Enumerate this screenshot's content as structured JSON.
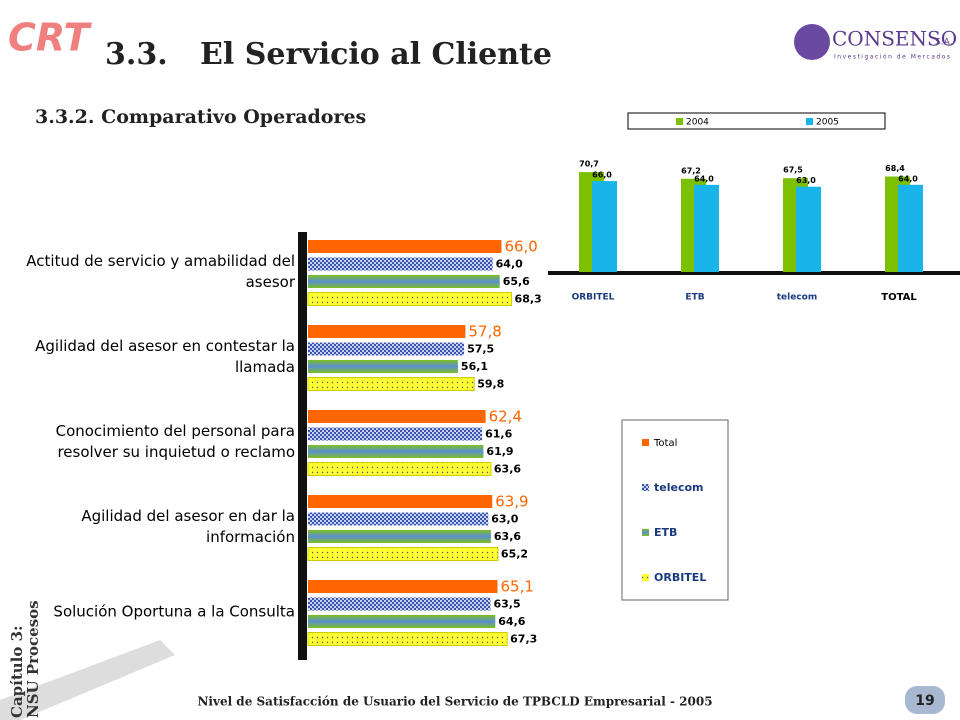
{
  "header": {
    "logo": "CRT",
    "section_number": "3.3.",
    "section_title": "El Servicio al Cliente",
    "subtitle": "3.3.2. Comparativo Operadores",
    "brand": "CONSENSO",
    "brand_suffix": "S.A.",
    "brand_tagline": "Investigación de Mercados"
  },
  "sidebar": {
    "line1": "Capítulo 3:",
    "line2": "NSU Procesos"
  },
  "footer": {
    "text": "Nivel de Satisfacción de Usuario del Servicio de TPBCLD Empresarial - 2005",
    "page": "19"
  },
  "chart_data": [
    {
      "type": "bar",
      "categories": [
        "ORBITEL",
        "ETB",
        "telecom",
        "TOTAL"
      ],
      "ylim": [
        18,
        75
      ],
      "series": [
        {
          "name": "2004",
          "color": "#7cc000",
          "values": [
            70.7,
            67.2,
            67.5,
            68.4
          ],
          "value_labels": [
            "70,7",
            "67,2",
            "67,5",
            "68,4"
          ]
        },
        {
          "name": "2005",
          "color": "#19b4ea",
          "values": [
            66.0,
            64.0,
            63.0,
            64.0
          ],
          "value_labels": [
            "66,0",
            "64,0",
            "63,0",
            "64,0"
          ]
        }
      ]
    },
    {
      "type": "hbar",
      "categories": [
        "Actitud de servicio y amabilidad del asesor",
        "Agilidad del asesor en contestar la llamada",
        "Conocimiento del personal para resolver su inquietud o reclamo",
        "Agilidad del asesor en dar la información",
        "Solución Oportuna a la Consulta"
      ],
      "xlim": [
        22,
        80
      ],
      "series": [
        {
          "name": "Total",
          "color": "#ff6600",
          "values": [
            66.0,
            57.8,
            62.4,
            63.9,
            65.1
          ],
          "value_labels": [
            "66,0",
            "57,8",
            "62,4",
            "63,9",
            "65,1"
          ]
        },
        {
          "name": "telecom",
          "color": "#3a55b0",
          "values": [
            64.0,
            57.5,
            61.6,
            63.0,
            63.5
          ],
          "value_labels": [
            "64,0",
            "57,5",
            "61,6",
            "63,0",
            "63,5"
          ]
        },
        {
          "name": "ETB",
          "color": "#6ab820",
          "values": [
            65.6,
            56.1,
            61.9,
            63.6,
            64.6
          ],
          "value_labels": [
            "65,6",
            "56,1",
            "61,9",
            "63,6",
            "64,6"
          ]
        },
        {
          "name": "ORBITEL",
          "color": "#ffff33",
          "values": [
            68.3,
            59.8,
            63.6,
            65.2,
            67.3
          ],
          "value_labels": [
            "68,3",
            "59,8",
            "63,6",
            "65,2",
            "67,3"
          ]
        }
      ]
    }
  ]
}
